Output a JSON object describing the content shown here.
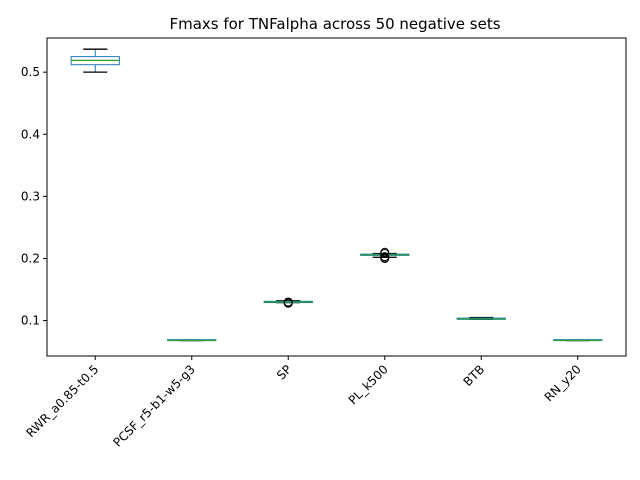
{
  "chart_data": {
    "type": "box",
    "title": "Fmaxs for TNFalpha across 50 negative sets",
    "xlabel": "",
    "ylabel": "",
    "ylim": [
      0.043,
      0.555
    ],
    "yticks": [
      0.1,
      0.2,
      0.3,
      0.4,
      0.5
    ],
    "ytick_labels": [
      "0.1",
      "0.2",
      "0.3",
      "0.4",
      "0.5"
    ],
    "grid": false,
    "colors": {
      "box": "#1f77b4",
      "median": "#2ca02c",
      "whisker": "#000000"
    },
    "categories": [
      "RWR_a0.85-t0.5",
      "PCSF_r5-b1-w5-g3",
      "SP",
      "PL_k500",
      "BTB",
      "RN_y20"
    ],
    "boxes": [
      {
        "whislo": 0.5,
        "q1": 0.512,
        "med": 0.519,
        "q3": 0.525,
        "whishi": 0.537,
        "fliers": []
      },
      {
        "whislo": 0.068,
        "q1": 0.068,
        "med": 0.068,
        "q3": 0.068,
        "whishi": 0.068,
        "fliers": []
      },
      {
        "whislo": 0.129,
        "q1": 0.129,
        "med": 0.13,
        "q3": 0.131,
        "whishi": 0.132,
        "fliers": [
          0.128,
          0.129,
          0.13
        ]
      },
      {
        "whislo": 0.202,
        "q1": 0.205,
        "med": 0.206,
        "q3": 0.207,
        "whishi": 0.208,
        "fliers": [
          0.2,
          0.201,
          0.203,
          0.208,
          0.21
        ]
      },
      {
        "whislo": 0.102,
        "q1": 0.102,
        "med": 0.103,
        "q3": 0.104,
        "whishi": 0.105,
        "fliers": []
      },
      {
        "whislo": 0.068,
        "q1": 0.068,
        "med": 0.068,
        "q3": 0.068,
        "whishi": 0.068,
        "fliers": []
      }
    ]
  }
}
